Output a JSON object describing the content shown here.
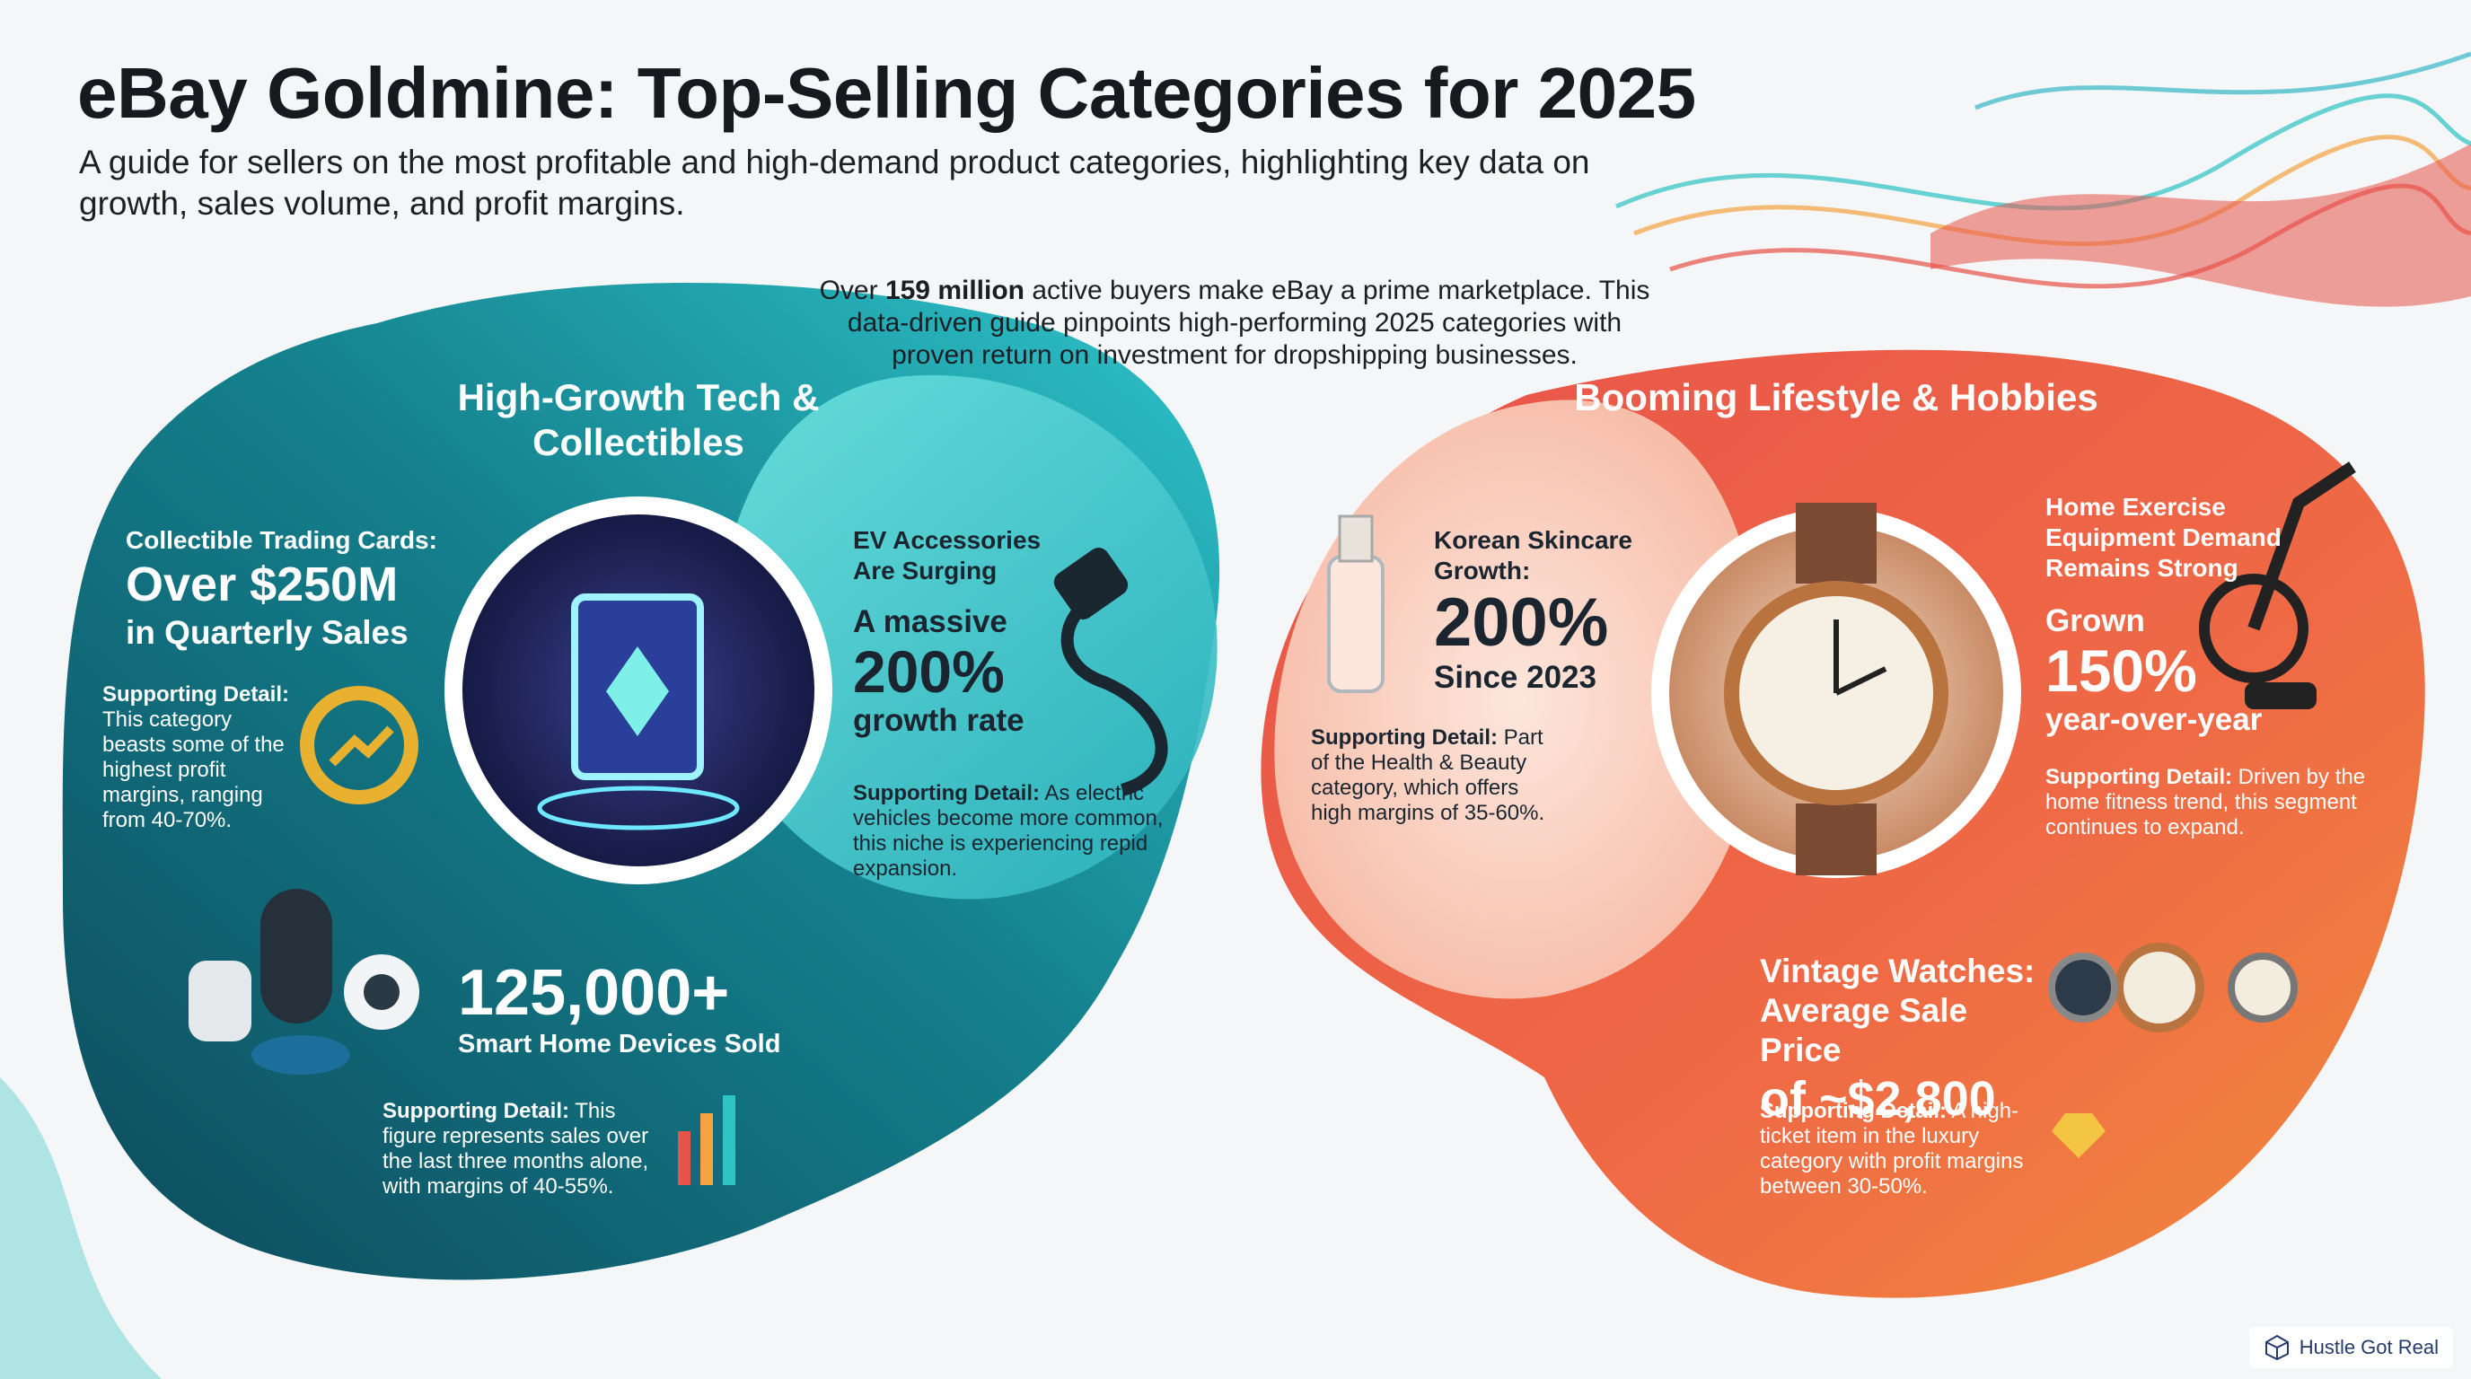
{
  "header": {
    "title": "eBay Goldmine: Top-Selling Categories for 2025",
    "subtitle": "A guide for sellers on the most profitable and high-demand product categories, highlighting key data on growth, sales volume, and profit margins."
  },
  "intro": {
    "lead": "Over",
    "highlight": "159 million",
    "text": "active buyers make eBay a prime marketplace. This data-driven guide pinpoints high-performing 2025 categories with proven return on investment for dropshipping businesses."
  },
  "sections": [
    {
      "title": "High-Growth Tech & Collectibles",
      "cards": [
        {
          "heading": "Collectible Trading Cards:",
          "stat": "Over $250M",
          "sub": "in Quarterly Sales",
          "detail_label": "Supporting Detail:",
          "detail": "This category beasts some of the highest profit margins, ranging from 40-70%."
        },
        {
          "heading": "EV Accessories Are Surging",
          "pre": "A massive",
          "stat": "200%",
          "sub": "growth rate",
          "detail_label": "Supporting Detail:",
          "detail": "As electric vehicles become more common, this niche is experiencing repid expansion."
        },
        {
          "stat": "125,000+",
          "sub": "Smart Home Devices Sold",
          "detail_label": "Supporting Detail:",
          "detail": "This figure represents sales over the last three months alone, with margins of 40-55%."
        }
      ]
    },
    {
      "title": "Booming Lifestyle & Hobbies",
      "cards": [
        {
          "heading": "Korean Skincare Growth:",
          "stat": "200%",
          "sub": "Since 2023",
          "detail_label": "Supporting Detail:",
          "detail": "Part of the Health & Beauty category, which offers high margins of 35-60%."
        },
        {
          "heading": "Home Exercise Equipment Demand Remains Strong",
          "pre": "Grown",
          "stat": "150%",
          "sub": "year-over-year",
          "detail_label": "Supporting Detail:",
          "detail": "Driven by the home fitness trend, this segment continues to expand."
        },
        {
          "heading": "Vintage Watches: Average Sale Price",
          "stat": "of ~$2,800",
          "detail_label": "Supporting Detail:",
          "detail": "A high-ticket item in the luxury category with profit margins between 30-50%."
        }
      ]
    }
  ],
  "footer": {
    "brand": "Hustle Got Real"
  }
}
